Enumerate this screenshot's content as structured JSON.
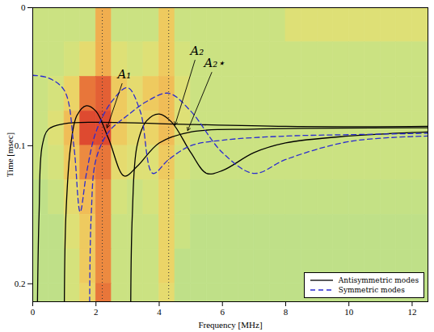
{
  "chart_data": {
    "type": "line",
    "x_label": "Frequency [MHz]",
    "y_label": "Time [msec]",
    "xlim": [
      0,
      12.5
    ],
    "ylim": [
      0,
      0.213
    ],
    "xticks": [
      0,
      2,
      4,
      6,
      8,
      10,
      12
    ],
    "yticks": [
      0,
      0.1,
      0.2
    ],
    "legend": "lower right",
    "heatmap": {
      "x_edges": [
        0,
        0.5,
        1,
        1.5,
        2,
        2.5,
        3,
        3.5,
        4,
        4.5,
        5,
        5.5,
        6,
        6.5,
        7,
        7.5,
        8,
        8.5,
        9,
        9.5,
        10,
        10.5,
        11,
        11.5,
        12,
        12.5
      ],
      "y_edges": [
        0,
        0.025,
        0.05,
        0.075,
        0.1,
        0.125,
        0.15,
        0.175,
        0.2,
        0.213
      ],
      "clim": [
        0,
        1
      ],
      "values": [
        [
          0.35,
          0.35,
          0.35,
          0.35,
          0.7,
          0.35,
          0.35,
          0.35,
          0.6,
          0.35,
          0.35,
          0.35,
          0.35,
          0.35,
          0.35,
          0.35,
          0.45,
          0.45,
          0.45,
          0.45,
          0.45,
          0.45,
          0.45,
          0.45,
          0.45
        ],
        [
          0.35,
          0.35,
          0.4,
          0.5,
          0.7,
          0.45,
          0.4,
          0.45,
          0.6,
          0.4,
          0.35,
          0.35,
          0.35,
          0.35,
          0.35,
          0.35,
          0.35,
          0.35,
          0.35,
          0.35,
          0.35,
          0.35,
          0.35,
          0.35,
          0.35
        ],
        [
          0.35,
          0.4,
          0.55,
          0.85,
          0.9,
          0.6,
          0.5,
          0.6,
          0.65,
          0.45,
          0.35,
          0.35,
          0.35,
          0.35,
          0.35,
          0.35,
          0.35,
          0.35,
          0.35,
          0.35,
          0.35,
          0.35,
          0.35,
          0.35,
          0.35
        ],
        [
          0.35,
          0.45,
          0.65,
          0.95,
          0.95,
          0.6,
          0.5,
          0.55,
          0.65,
          0.45,
          0.35,
          0.35,
          0.35,
          0.35,
          0.35,
          0.35,
          0.35,
          0.35,
          0.35,
          0.35,
          0.35,
          0.35,
          0.35,
          0.35,
          0.35
        ],
        [
          0.35,
          0.4,
          0.6,
          0.8,
          0.85,
          0.5,
          0.45,
          0.45,
          0.6,
          0.4,
          0.35,
          0.35,
          0.35,
          0.35,
          0.35,
          0.35,
          0.35,
          0.35,
          0.35,
          0.35,
          0.35,
          0.35,
          0.35,
          0.35,
          0.35
        ],
        [
          0.3,
          0.35,
          0.5,
          0.65,
          0.8,
          0.4,
          0.35,
          0.4,
          0.55,
          0.35,
          0.32,
          0.32,
          0.32,
          0.32,
          0.32,
          0.32,
          0.32,
          0.32,
          0.32,
          0.32,
          0.32,
          0.32,
          0.32,
          0.32,
          0.32
        ],
        [
          0.3,
          0.3,
          0.45,
          0.6,
          0.8,
          0.35,
          0.35,
          0.35,
          0.55,
          0.35,
          0.3,
          0.3,
          0.3,
          0.3,
          0.3,
          0.3,
          0.3,
          0.3,
          0.3,
          0.3,
          0.3,
          0.3,
          0.3,
          0.3,
          0.3
        ],
        [
          0.3,
          0.3,
          0.4,
          0.6,
          0.8,
          0.35,
          0.35,
          0.35,
          0.55,
          0.3,
          0.3,
          0.3,
          0.3,
          0.3,
          0.3,
          0.3,
          0.3,
          0.3,
          0.3,
          0.3,
          0.3,
          0.3,
          0.3,
          0.3,
          0.3
        ],
        [
          0.3,
          0.3,
          0.4,
          0.55,
          0.85,
          0.35,
          0.35,
          0.35,
          0.5,
          0.3,
          0.3,
          0.3,
          0.3,
          0.3,
          0.3,
          0.3,
          0.3,
          0.3,
          0.3,
          0.3,
          0.3,
          0.3,
          0.3,
          0.3,
          0.3
        ]
      ]
    },
    "vlines": [
      2.2,
      4.3
    ],
    "series": [
      {
        "name": "Antisymmetric modes",
        "color": "#000000",
        "line_style": "solid",
        "curves": [
          {
            "x": [
              0.15,
              0.2,
              0.3,
              0.5,
              1,
              2,
              4,
              8,
              12.5
            ],
            "y": [
              0.213,
              0.15,
              0.1,
              0.088,
              0.084,
              0.083,
              0.084,
              0.086,
              0.086
            ]
          },
          {
            "x": [
              1.0,
              1.05,
              1.2,
              1.4,
              1.7,
              2.0,
              2.4,
              2.9,
              3.3,
              4,
              5,
              7,
              12.5
            ],
            "y": [
              0.213,
              0.15,
              0.1,
              0.078,
              0.071,
              0.075,
              0.095,
              0.122,
              0.115,
              0.098,
              0.09,
              0.088,
              0.087
            ]
          },
          {
            "x": [
              3.1,
              3.15,
              3.3,
              3.6,
              4.0,
              4.4,
              5.0,
              5.5,
              6,
              7,
              8,
              10,
              12.5
            ],
            "y": [
              0.213,
              0.15,
              0.1,
              0.082,
              0.077,
              0.083,
              0.105,
              0.12,
              0.118,
              0.105,
              0.098,
              0.093,
              0.09
            ]
          }
        ]
      },
      {
        "name": "Symmetric modes",
        "color": "#2b2bd0",
        "line_style": "dashed",
        "curves": [
          {
            "x": [
              0,
              0.5,
              1.0,
              1.3,
              1.5,
              1.7,
              2.0,
              2.5,
              3.0,
              3.4,
              3.8,
              4.3,
              5,
              6,
              8,
              10,
              12.5
            ],
            "y": [
              0.049,
              0.051,
              0.06,
              0.1,
              0.148,
              0.12,
              0.09,
              0.068,
              0.058,
              0.075,
              0.12,
              0.11,
              0.1,
              0.096,
              0.093,
              0.092,
              0.091
            ]
          },
          {
            "x": [
              1.8,
              1.85,
              2.0,
              2.4,
              3.0,
              3.6,
              4.3,
              5.0,
              6.0,
              7.0,
              8.0,
              10,
              12.5
            ],
            "y": [
              0.213,
              0.15,
              0.11,
              0.09,
              0.078,
              0.068,
              0.062,
              0.075,
              0.105,
              0.12,
              0.11,
              0.097,
              0.093
            ]
          }
        ]
      }
    ],
    "annotations": [
      {
        "text": "A₁",
        "x": 2.9,
        "y": 0.05,
        "arrow_x": 2.35,
        "arrow_y": 0.087
      },
      {
        "text": "A₂",
        "x": 5.2,
        "y": 0.033,
        "arrow_x": 4.5,
        "arrow_y": 0.085
      },
      {
        "text": "A₂⋆",
        "x": 5.75,
        "y": 0.042,
        "arrow_x": 4.9,
        "arrow_y": 0.089
      }
    ]
  }
}
